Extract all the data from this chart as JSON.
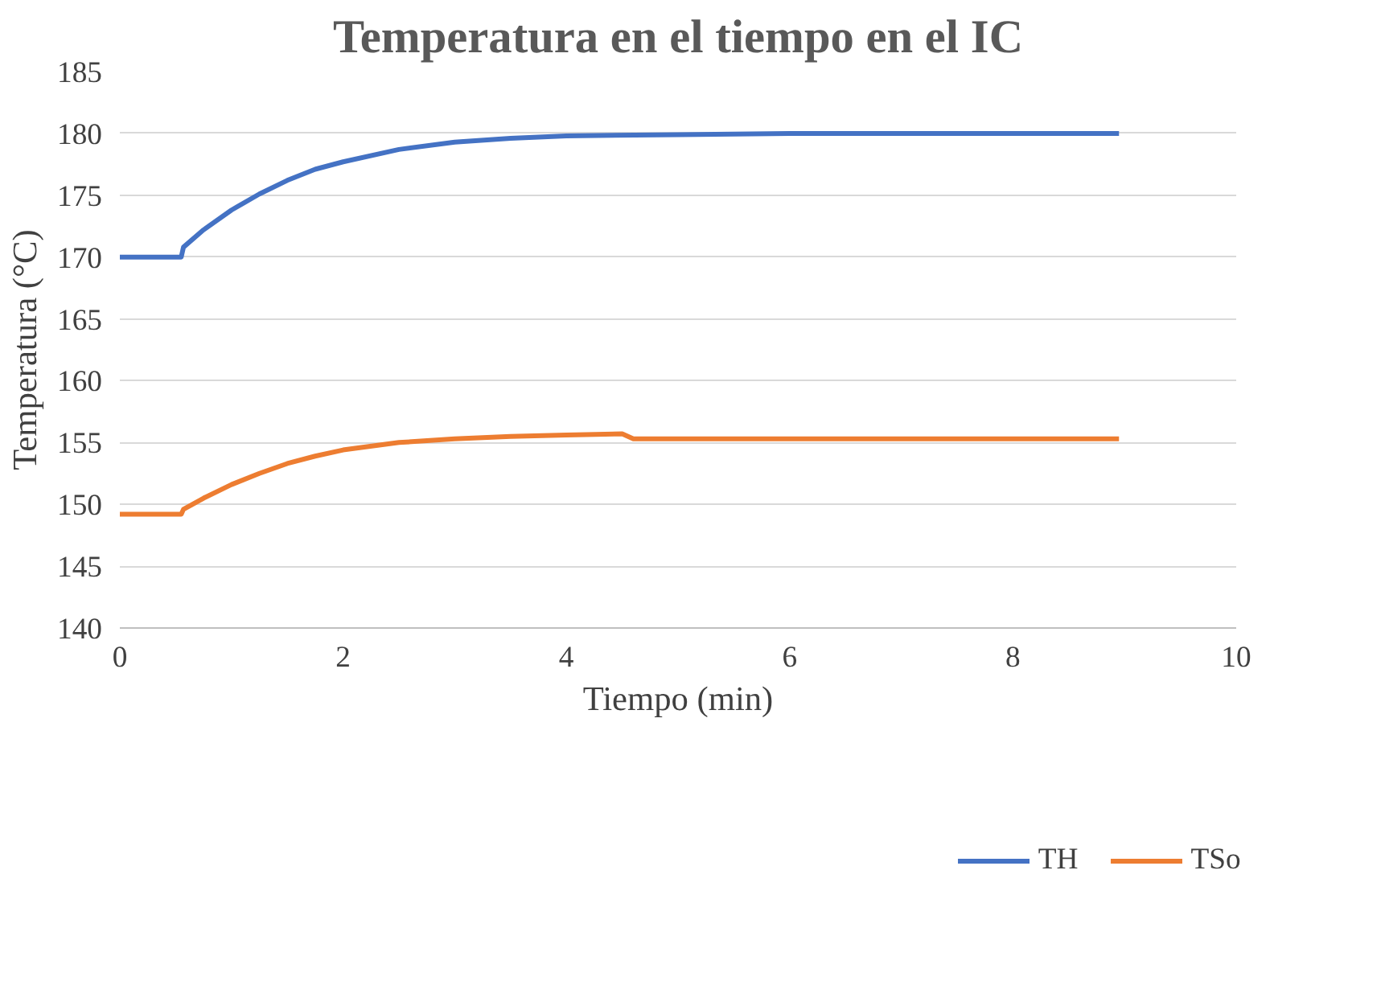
{
  "chart_data": {
    "type": "line",
    "title": "Temperatura en el tiempo en el IC",
    "xlabel": "Tiempo (min)",
    "ylabel": "Temperatura (°C)",
    "xlim": [
      0,
      10
    ],
    "xticks": [
      0,
      2,
      4,
      6,
      8,
      10
    ],
    "ylim": [
      140,
      185
    ],
    "yticks": [
      140,
      145,
      150,
      155,
      160,
      165,
      170,
      175,
      180,
      185
    ],
    "grid": "y",
    "legend": "bottom",
    "marker": "none",
    "line_style": "solid",
    "series": [
      {
        "name": "TH",
        "color": "#4472c4",
        "x": [
          0,
          0.55,
          0.57,
          0.75,
          1,
          1.25,
          1.5,
          1.75,
          2,
          2.5,
          3,
          3.5,
          4,
          5,
          6,
          8.95
        ],
        "values": [
          170,
          170,
          170.8,
          172.2,
          173.8,
          175.1,
          176.2,
          177.1,
          177.7,
          178.7,
          179.3,
          179.6,
          179.8,
          179.9,
          180,
          180
        ]
      },
      {
        "name": "TSo",
        "color": "#ed7d31",
        "x": [
          0,
          0.55,
          0.57,
          0.75,
          1,
          1.25,
          1.5,
          1.75,
          2,
          2.5,
          3,
          3.5,
          4,
          4.5,
          4.6,
          6,
          8.95
        ],
        "values": [
          149.2,
          149.2,
          149.6,
          150.5,
          151.6,
          152.5,
          153.3,
          153.9,
          154.4,
          155,
          155.3,
          155.5,
          155.6,
          155.7,
          155.3,
          155.3,
          155.3
        ]
      }
    ]
  }
}
